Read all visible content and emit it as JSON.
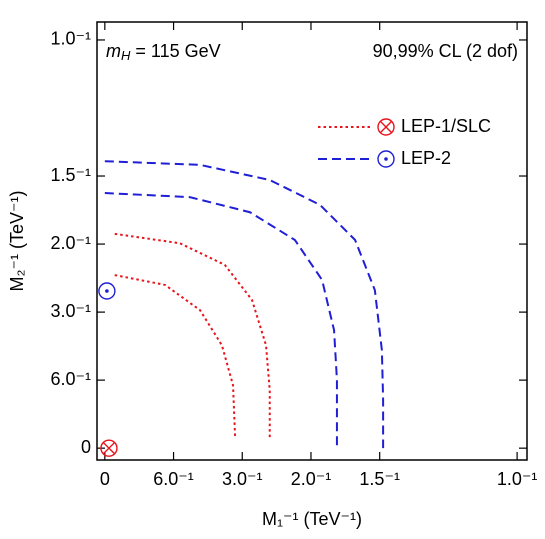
{
  "chart_data": {
    "type": "line",
    "annotations": {
      "left": [
        "m",
        "H",
        " = 115 GeV"
      ],
      "right": "90,99% CL (2 dof)"
    },
    "xlabel": "M₁⁻¹ (TeV⁻¹)",
    "ylabel": "M₂⁻¹ (TeV⁻¹)",
    "xlim": [
      -0.019,
      1.024
    ],
    "ylim": [
      -0.029,
      1.044
    ],
    "xticks": [
      0,
      {
        "value": 0.1667,
        "label": "6.0⁻¹"
      },
      {
        "value": 0.3333,
        "label": "3.0⁻¹"
      },
      {
        "value": 0.5,
        "label": "2.0⁻¹"
      },
      {
        "value": 0.6667,
        "label": "1.5⁻¹"
      },
      {
        "value": 1,
        "label": "1.0⁻¹"
      }
    ],
    "yticks": [
      0,
      {
        "value": 0.1667,
        "label": "6.0⁻¹"
      },
      {
        "value": 0.3333,
        "label": "3.0⁻¹"
      },
      {
        "value": 0.5,
        "label": "2.0⁻¹"
      },
      {
        "value": 0.6667,
        "label": "1.5⁻¹"
      },
      {
        "value": 1,
        "label": "1.0⁻¹"
      }
    ],
    "legend": [
      {
        "name": "LEP-1/SLC",
        "color": "#e8141c",
        "dash": "dotted",
        "symbol": "otimes"
      },
      {
        "name": "LEP-2",
        "color": "#1f1fd6",
        "dash": "dashed",
        "symbol": "odot"
      }
    ],
    "series": [
      {
        "color": "#1f1fd6",
        "dash": "dashed",
        "x": [
          0,
          0.231,
          0.4,
          0.522,
          0.607,
          0.655,
          0.672,
          0.675,
          0.675
        ],
        "y": [
          0.703,
          0.694,
          0.657,
          0.596,
          0.51,
          0.387,
          0.24,
          0.118,
          0
        ]
      },
      {
        "color": "#1f1fd6",
        "dash": "dashed",
        "x": [
          0,
          0.206,
          0.352,
          0.461,
          0.527,
          0.556,
          0.563,
          0.563
        ],
        "y": [
          0.625,
          0.615,
          0.578,
          0.51,
          0.412,
          0.289,
          0.167,
          0
        ]
      },
      {
        "color": "#e8141c",
        "dash": "dotted",
        "x": [
          0.024,
          0.182,
          0.291,
          0.357,
          0.391,
          0.4,
          0.4
        ],
        "y": [
          0.525,
          0.502,
          0.449,
          0.363,
          0.252,
          0.142,
          0.025
        ]
      },
      {
        "color": "#e8141c",
        "dash": "dotted",
        "x": [
          0.024,
          0.146,
          0.231,
          0.284,
          0.311,
          0.316
        ],
        "y": [
          0.424,
          0.4,
          0.338,
          0.252,
          0.154,
          0.025
        ]
      }
    ],
    "points": [
      {
        "x": 0.005,
        "y": 0.385,
        "color": "#1f1fd6",
        "symbol": "odot"
      },
      {
        "x": 0.01,
        "y": 0,
        "color": "#e8141c",
        "symbol": "otimes"
      }
    ]
  }
}
